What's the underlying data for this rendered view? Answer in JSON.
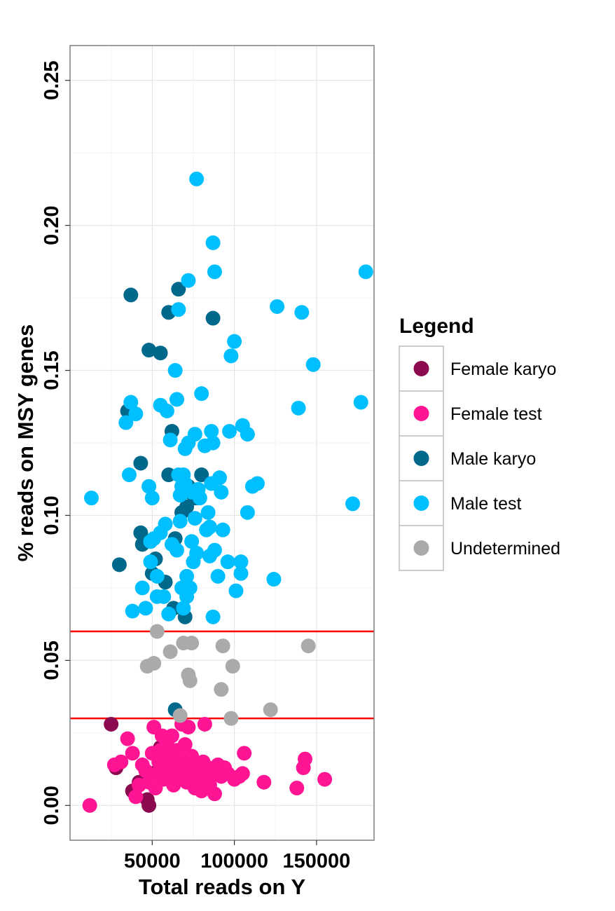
{
  "chart_data": {
    "type": "scatter",
    "xlabel": "Total reads on Y",
    "ylabel": "% reads on MSY genes",
    "xlim": [
      0,
      185000
    ],
    "ylim": [
      -0.012,
      0.262
    ],
    "x_ticks": [
      50000,
      100000,
      150000
    ],
    "x_tick_labels": [
      "50000",
      "100000",
      "150000"
    ],
    "y_ticks": [
      0.0,
      0.05,
      0.1,
      0.15,
      0.2,
      0.25
    ],
    "y_tick_labels": [
      "0.00",
      "0.05",
      "0.10",
      "0.15",
      "0.20",
      "0.25"
    ],
    "grid": true,
    "threshold_lines": [
      {
        "axis": "y",
        "value": 0.06,
        "color": "#ff0000"
      },
      {
        "axis": "y",
        "value": 0.03,
        "color": "#ff0000"
      }
    ],
    "legend": {
      "title": "Legend",
      "placement": "right",
      "entries": [
        "Female karyo",
        "Female test",
        "Male karyo",
        "Male test",
        "Undetermined"
      ]
    },
    "series": [
      {
        "name": "Female karyo",
        "color": "#8b0a50",
        "points": [
          [
            25000,
            0.028
          ],
          [
            28000,
            0.013
          ],
          [
            38000,
            0.005
          ],
          [
            42000,
            0.008
          ],
          [
            48000,
            0.0
          ],
          [
            47000,
            0.002
          ],
          [
            50000,
            0.011
          ],
          [
            55000,
            0.02
          ],
          [
            60000,
            0.016
          ],
          [
            62000,
            0.009
          ],
          [
            70000,
            0.012
          ],
          [
            78000,
            0.01
          ]
        ]
      },
      {
        "name": "Female test",
        "color": "#ff1493",
        "points": [
          [
            12000,
            0.0
          ],
          [
            27000,
            0.014
          ],
          [
            31000,
            0.015
          ],
          [
            35000,
            0.023
          ],
          [
            38000,
            0.018
          ],
          [
            40000,
            0.003
          ],
          [
            42000,
            0.007
          ],
          [
            44000,
            0.014
          ],
          [
            46000,
            0.012
          ],
          [
            48000,
            0.008
          ],
          [
            50000,
            0.018
          ],
          [
            51000,
            0.027
          ],
          [
            52000,
            0.006
          ],
          [
            53000,
            0.011
          ],
          [
            54000,
            0.015
          ],
          [
            55000,
            0.019
          ],
          [
            56000,
            0.024
          ],
          [
            57000,
            0.009
          ],
          [
            58000,
            0.013
          ],
          [
            59000,
            0.021
          ],
          [
            60000,
            0.01
          ],
          [
            61000,
            0.017
          ],
          [
            62000,
            0.024
          ],
          [
            63000,
            0.007
          ],
          [
            64000,
            0.012
          ],
          [
            65000,
            0.019
          ],
          [
            66000,
            0.014
          ],
          [
            67000,
            0.01
          ],
          [
            68000,
            0.028
          ],
          [
            69000,
            0.016
          ],
          [
            70000,
            0.021
          ],
          [
            71000,
            0.008
          ],
          [
            72000,
            0.027
          ],
          [
            73000,
            0.013
          ],
          [
            74000,
            0.017
          ],
          [
            75000,
            0.011
          ],
          [
            76000,
            0.006
          ],
          [
            77000,
            0.014
          ],
          [
            78000,
            0.009
          ],
          [
            79000,
            0.012
          ],
          [
            80000,
            0.005
          ],
          [
            81000,
            0.015
          ],
          [
            82000,
            0.028
          ],
          [
            83000,
            0.01
          ],
          [
            84000,
            0.013
          ],
          [
            85000,
            0.007
          ],
          [
            86000,
            0.011
          ],
          [
            88000,
            0.004
          ],
          [
            89000,
            0.012
          ],
          [
            90000,
            0.014
          ],
          [
            92000,
            0.01
          ],
          [
            94000,
            0.013
          ],
          [
            96000,
            0.011
          ],
          [
            100000,
            0.009
          ],
          [
            103000,
            0.01
          ],
          [
            105000,
            0.011
          ],
          [
            106000,
            0.018
          ],
          [
            118000,
            0.008
          ],
          [
            138000,
            0.006
          ],
          [
            142000,
            0.013
          ],
          [
            143000,
            0.016
          ],
          [
            155000,
            0.009
          ]
        ]
      },
      {
        "name": "Male karyo",
        "color": "#00688b",
        "points": [
          [
            30000,
            0.083
          ],
          [
            35000,
            0.136
          ],
          [
            37000,
            0.176
          ],
          [
            43000,
            0.118
          ],
          [
            43000,
            0.094
          ],
          [
            44000,
            0.09
          ],
          [
            48000,
            0.157
          ],
          [
            50000,
            0.08
          ],
          [
            52000,
            0.085
          ],
          [
            55000,
            0.156
          ],
          [
            58000,
            0.077
          ],
          [
            60000,
            0.17
          ],
          [
            60000,
            0.114
          ],
          [
            62000,
            0.129
          ],
          [
            63000,
            0.068
          ],
          [
            64000,
            0.092
          ],
          [
            64000,
            0.033
          ],
          [
            66000,
            0.178
          ],
          [
            68000,
            0.101
          ],
          [
            70000,
            0.065
          ],
          [
            71000,
            0.103
          ],
          [
            72000,
            0.11
          ],
          [
            73000,
            0.108
          ],
          [
            76000,
            0.106
          ],
          [
            78000,
            0.106
          ],
          [
            80000,
            0.114
          ],
          [
            87000,
            0.168
          ]
        ]
      },
      {
        "name": "Male test",
        "color": "#00bfff",
        "points": [
          [
            13000,
            0.106
          ],
          [
            34000,
            0.132
          ],
          [
            36000,
            0.114
          ],
          [
            37000,
            0.139
          ],
          [
            38000,
            0.067
          ],
          [
            40000,
            0.135
          ],
          [
            44000,
            0.075
          ],
          [
            46000,
            0.068
          ],
          [
            48000,
            0.11
          ],
          [
            49000,
            0.091
          ],
          [
            49000,
            0.084
          ],
          [
            50000,
            0.106
          ],
          [
            51000,
            0.092
          ],
          [
            53000,
            0.079
          ],
          [
            53000,
            0.072
          ],
          [
            55000,
            0.138
          ],
          [
            55000,
            0.094
          ],
          [
            57000,
            0.072
          ],
          [
            58000,
            0.097
          ],
          [
            59000,
            0.136
          ],
          [
            60000,
            0.066
          ],
          [
            61000,
            0.126
          ],
          [
            62000,
            0.09
          ],
          [
            64000,
            0.15
          ],
          [
            65000,
            0.088
          ],
          [
            65000,
            0.14
          ],
          [
            66000,
            0.114
          ],
          [
            66000,
            0.171
          ],
          [
            67000,
            0.107
          ],
          [
            67000,
            0.098
          ],
          [
            68000,
            0.11
          ],
          [
            68000,
            0.075
          ],
          [
            69000,
            0.114
          ],
          [
            69000,
            0.068
          ],
          [
            70000,
            0.123
          ],
          [
            70000,
            0.111
          ],
          [
            71000,
            0.079
          ],
          [
            71000,
            0.072
          ],
          [
            72000,
            0.181
          ],
          [
            72000,
            0.125
          ],
          [
            73000,
            0.075
          ],
          [
            74000,
            0.091
          ],
          [
            74000,
            0.108
          ],
          [
            75000,
            0.084
          ],
          [
            76000,
            0.128
          ],
          [
            76000,
            0.099
          ],
          [
            77000,
            0.216
          ],
          [
            77000,
            0.087
          ],
          [
            78000,
            0.109
          ],
          [
            79000,
            0.106
          ],
          [
            80000,
            0.142
          ],
          [
            82000,
            0.124
          ],
          [
            83000,
            0.095
          ],
          [
            84000,
            0.101
          ],
          [
            85000,
            0.096
          ],
          [
            85000,
            0.086
          ],
          [
            86000,
            0.129
          ],
          [
            86000,
            0.111
          ],
          [
            87000,
            0.194
          ],
          [
            87000,
            0.125
          ],
          [
            87000,
            0.065
          ],
          [
            88000,
            0.184
          ],
          [
            88000,
            0.088
          ],
          [
            90000,
            0.079
          ],
          [
            91000,
            0.113
          ],
          [
            92000,
            0.108
          ],
          [
            93000,
            0.095
          ],
          [
            96000,
            0.084
          ],
          [
            97000,
            0.129
          ],
          [
            98000,
            0.155
          ],
          [
            100000,
            0.16
          ],
          [
            101000,
            0.074
          ],
          [
            104000,
            0.084
          ],
          [
            104000,
            0.08
          ],
          [
            105000,
            0.131
          ],
          [
            108000,
            0.128
          ],
          [
            108000,
            0.101
          ],
          [
            111000,
            0.11
          ],
          [
            114000,
            0.111
          ],
          [
            124000,
            0.078
          ],
          [
            126000,
            0.172
          ],
          [
            139000,
            0.137
          ],
          [
            141000,
            0.17
          ],
          [
            148000,
            0.152
          ],
          [
            172000,
            0.104
          ],
          [
            177000,
            0.139
          ],
          [
            180000,
            0.184
          ]
        ]
      },
      {
        "name": "Undetermined",
        "color": "#aaaaaa",
        "points": [
          [
            47000,
            0.048
          ],
          [
            51000,
            0.049
          ],
          [
            53000,
            0.06
          ],
          [
            61000,
            0.053
          ],
          [
            67000,
            0.031
          ],
          [
            69000,
            0.056
          ],
          [
            72000,
            0.045
          ],
          [
            73000,
            0.043
          ],
          [
            74000,
            0.056
          ],
          [
            92000,
            0.04
          ],
          [
            93000,
            0.055
          ],
          [
            98000,
            0.03
          ],
          [
            99000,
            0.048
          ],
          [
            122000,
            0.033
          ],
          [
            145000,
            0.055
          ]
        ]
      }
    ]
  }
}
